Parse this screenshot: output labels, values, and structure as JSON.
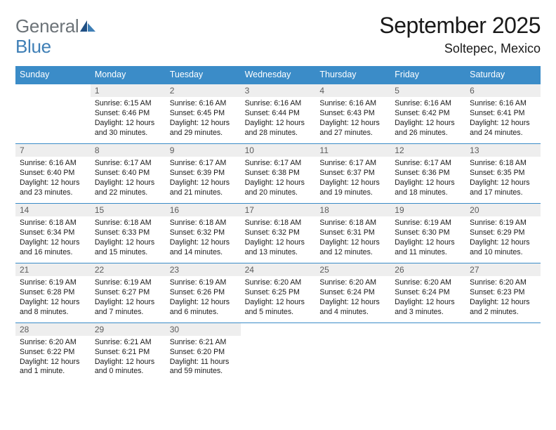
{
  "logo": {
    "top": "General",
    "bottom": "Blue"
  },
  "title": "September 2025",
  "location": "Soltepec, Mexico",
  "colors": {
    "header_bg": "#3b8cc8",
    "header_text": "#ffffff",
    "band_bg": "#eeeeee",
    "rule": "#3b8cc8",
    "logo_gray": "#6c7378",
    "logo_blue": "#3f7fb6"
  },
  "day_names": [
    "Sunday",
    "Monday",
    "Tuesday",
    "Wednesday",
    "Thursday",
    "Friday",
    "Saturday"
  ],
  "weeks": [
    [
      {
        "empty": true
      },
      {
        "n": "1",
        "sr": "Sunrise: 6:15 AM",
        "ss": "Sunset: 6:46 PM",
        "dl": "Daylight: 12 hours and 30 minutes."
      },
      {
        "n": "2",
        "sr": "Sunrise: 6:16 AM",
        "ss": "Sunset: 6:45 PM",
        "dl": "Daylight: 12 hours and 29 minutes."
      },
      {
        "n": "3",
        "sr": "Sunrise: 6:16 AM",
        "ss": "Sunset: 6:44 PM",
        "dl": "Daylight: 12 hours and 28 minutes."
      },
      {
        "n": "4",
        "sr": "Sunrise: 6:16 AM",
        "ss": "Sunset: 6:43 PM",
        "dl": "Daylight: 12 hours and 27 minutes."
      },
      {
        "n": "5",
        "sr": "Sunrise: 6:16 AM",
        "ss": "Sunset: 6:42 PM",
        "dl": "Daylight: 12 hours and 26 minutes."
      },
      {
        "n": "6",
        "sr": "Sunrise: 6:16 AM",
        "ss": "Sunset: 6:41 PM",
        "dl": "Daylight: 12 hours and 24 minutes."
      }
    ],
    [
      {
        "n": "7",
        "sr": "Sunrise: 6:16 AM",
        "ss": "Sunset: 6:40 PM",
        "dl": "Daylight: 12 hours and 23 minutes."
      },
      {
        "n": "8",
        "sr": "Sunrise: 6:17 AM",
        "ss": "Sunset: 6:40 PM",
        "dl": "Daylight: 12 hours and 22 minutes."
      },
      {
        "n": "9",
        "sr": "Sunrise: 6:17 AM",
        "ss": "Sunset: 6:39 PM",
        "dl": "Daylight: 12 hours and 21 minutes."
      },
      {
        "n": "10",
        "sr": "Sunrise: 6:17 AM",
        "ss": "Sunset: 6:38 PM",
        "dl": "Daylight: 12 hours and 20 minutes."
      },
      {
        "n": "11",
        "sr": "Sunrise: 6:17 AM",
        "ss": "Sunset: 6:37 PM",
        "dl": "Daylight: 12 hours and 19 minutes."
      },
      {
        "n": "12",
        "sr": "Sunrise: 6:17 AM",
        "ss": "Sunset: 6:36 PM",
        "dl": "Daylight: 12 hours and 18 minutes."
      },
      {
        "n": "13",
        "sr": "Sunrise: 6:18 AM",
        "ss": "Sunset: 6:35 PM",
        "dl": "Daylight: 12 hours and 17 minutes."
      }
    ],
    [
      {
        "n": "14",
        "sr": "Sunrise: 6:18 AM",
        "ss": "Sunset: 6:34 PM",
        "dl": "Daylight: 12 hours and 16 minutes."
      },
      {
        "n": "15",
        "sr": "Sunrise: 6:18 AM",
        "ss": "Sunset: 6:33 PM",
        "dl": "Daylight: 12 hours and 15 minutes."
      },
      {
        "n": "16",
        "sr": "Sunrise: 6:18 AM",
        "ss": "Sunset: 6:32 PM",
        "dl": "Daylight: 12 hours and 14 minutes."
      },
      {
        "n": "17",
        "sr": "Sunrise: 6:18 AM",
        "ss": "Sunset: 6:32 PM",
        "dl": "Daylight: 12 hours and 13 minutes."
      },
      {
        "n": "18",
        "sr": "Sunrise: 6:18 AM",
        "ss": "Sunset: 6:31 PM",
        "dl": "Daylight: 12 hours and 12 minutes."
      },
      {
        "n": "19",
        "sr": "Sunrise: 6:19 AM",
        "ss": "Sunset: 6:30 PM",
        "dl": "Daylight: 12 hours and 11 minutes."
      },
      {
        "n": "20",
        "sr": "Sunrise: 6:19 AM",
        "ss": "Sunset: 6:29 PM",
        "dl": "Daylight: 12 hours and 10 minutes."
      }
    ],
    [
      {
        "n": "21",
        "sr": "Sunrise: 6:19 AM",
        "ss": "Sunset: 6:28 PM",
        "dl": "Daylight: 12 hours and 8 minutes."
      },
      {
        "n": "22",
        "sr": "Sunrise: 6:19 AM",
        "ss": "Sunset: 6:27 PM",
        "dl": "Daylight: 12 hours and 7 minutes."
      },
      {
        "n": "23",
        "sr": "Sunrise: 6:19 AM",
        "ss": "Sunset: 6:26 PM",
        "dl": "Daylight: 12 hours and 6 minutes."
      },
      {
        "n": "24",
        "sr": "Sunrise: 6:20 AM",
        "ss": "Sunset: 6:25 PM",
        "dl": "Daylight: 12 hours and 5 minutes."
      },
      {
        "n": "25",
        "sr": "Sunrise: 6:20 AM",
        "ss": "Sunset: 6:24 PM",
        "dl": "Daylight: 12 hours and 4 minutes."
      },
      {
        "n": "26",
        "sr": "Sunrise: 6:20 AM",
        "ss": "Sunset: 6:24 PM",
        "dl": "Daylight: 12 hours and 3 minutes."
      },
      {
        "n": "27",
        "sr": "Sunrise: 6:20 AM",
        "ss": "Sunset: 6:23 PM",
        "dl": "Daylight: 12 hours and 2 minutes."
      }
    ],
    [
      {
        "n": "28",
        "sr": "Sunrise: 6:20 AM",
        "ss": "Sunset: 6:22 PM",
        "dl": "Daylight: 12 hours and 1 minute."
      },
      {
        "n": "29",
        "sr": "Sunrise: 6:21 AM",
        "ss": "Sunset: 6:21 PM",
        "dl": "Daylight: 12 hours and 0 minutes."
      },
      {
        "n": "30",
        "sr": "Sunrise: 6:21 AM",
        "ss": "Sunset: 6:20 PM",
        "dl": "Daylight: 11 hours and 59 minutes."
      },
      {
        "empty": true
      },
      {
        "empty": true
      },
      {
        "empty": true
      },
      {
        "empty": true
      }
    ]
  ]
}
